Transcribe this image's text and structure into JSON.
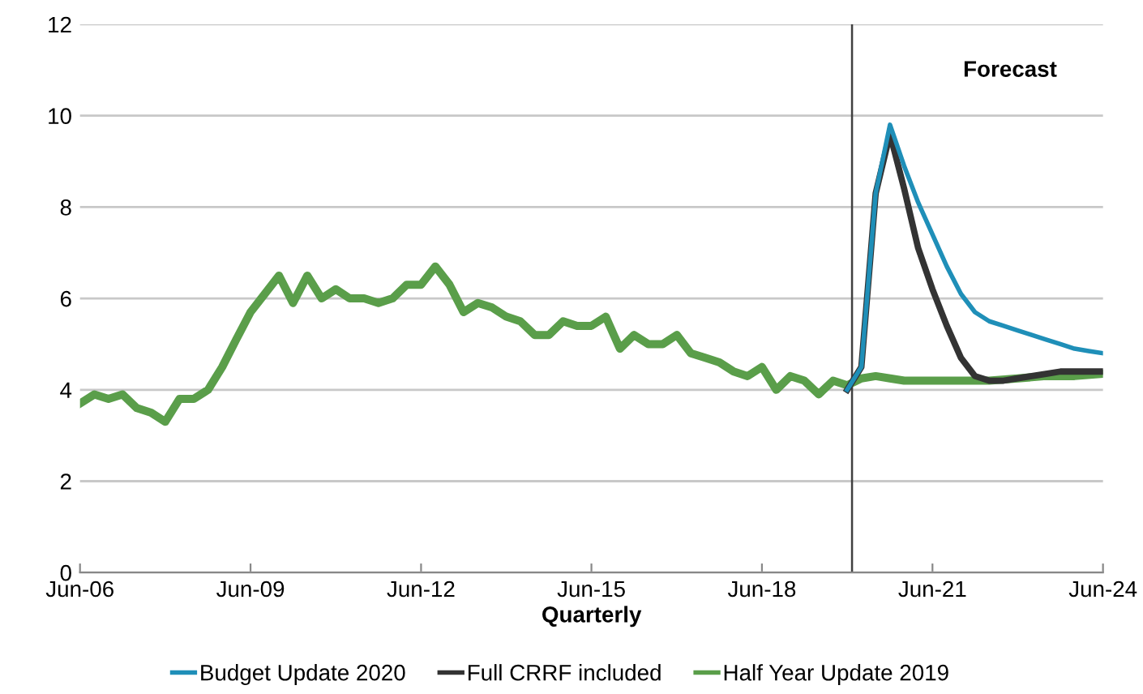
{
  "chart_data": {
    "type": "line",
    "xlabel": "Quarterly",
    "xlim": [
      "2006-06",
      "2024-06"
    ],
    "xticks": [
      {
        "value": "2006-06",
        "label": "Jun-06"
      },
      {
        "value": "2009-06",
        "label": "Jun-09"
      },
      {
        "value": "2012-06",
        "label": "Jun-12"
      },
      {
        "value": "2015-06",
        "label": "Jun-15"
      },
      {
        "value": "2018-06",
        "label": "Jun-18"
      },
      {
        "value": "2021-06",
        "label": "Jun-21"
      },
      {
        "value": "2024-06",
        "label": "Jun-24"
      }
    ],
    "ylim": [
      0,
      12
    ],
    "yticks": [
      0,
      2,
      4,
      6,
      8,
      10,
      12
    ],
    "grid": "y",
    "legend": "bottom",
    "line_style": "solid",
    "marker": "none",
    "ref_lines": [
      {
        "axis": "x",
        "value": "2020-01",
        "color": "#404040"
      }
    ],
    "annotations": [
      "Forecast"
    ],
    "series": [
      {
        "name": "Budget Update 2020",
        "color": "#1f8fb8",
        "x": [
          "2019-12",
          "2020-03",
          "2020-06",
          "2020-09",
          "2020-12",
          "2021-03",
          "2021-06",
          "2021-09",
          "2021-12",
          "2022-03",
          "2022-06",
          "2022-09",
          "2022-12",
          "2023-03",
          "2023-06",
          "2023-09",
          "2023-12",
          "2024-03",
          "2024-06"
        ],
        "values": [
          4.0,
          4.5,
          8.3,
          9.8,
          8.9,
          8.1,
          7.4,
          6.7,
          6.1,
          5.7,
          5.5,
          5.4,
          5.3,
          5.2,
          5.1,
          5.0,
          4.9,
          4.85,
          4.8
        ]
      },
      {
        "name": "Full CRRF included",
        "color": "#333333",
        "x": [
          "2019-12",
          "2020-03",
          "2020-06",
          "2020-09",
          "2020-12",
          "2021-03",
          "2021-06",
          "2021-09",
          "2021-12",
          "2022-03",
          "2022-06",
          "2022-09",
          "2022-12",
          "2023-03",
          "2023-06",
          "2023-09",
          "2023-12",
          "2024-03",
          "2024-06"
        ],
        "values": [
          4.0,
          4.5,
          8.3,
          9.6,
          8.4,
          7.1,
          6.2,
          5.4,
          4.7,
          4.3,
          4.2,
          4.2,
          4.25,
          4.3,
          4.35,
          4.4,
          4.4,
          4.4,
          4.4
        ]
      },
      {
        "name": "Half Year Update 2019",
        "color": "#5a9e4a",
        "x": [
          "2006-06",
          "2006-09",
          "2006-12",
          "2007-03",
          "2007-06",
          "2007-09",
          "2007-12",
          "2008-03",
          "2008-06",
          "2008-09",
          "2008-12",
          "2009-03",
          "2009-06",
          "2009-09",
          "2009-12",
          "2010-03",
          "2010-06",
          "2010-09",
          "2010-12",
          "2011-03",
          "2011-06",
          "2011-09",
          "2011-12",
          "2012-03",
          "2012-06",
          "2012-09",
          "2012-12",
          "2013-03",
          "2013-06",
          "2013-09",
          "2013-12",
          "2014-03",
          "2014-06",
          "2014-09",
          "2014-12",
          "2015-03",
          "2015-06",
          "2015-09",
          "2015-12",
          "2016-03",
          "2016-06",
          "2016-09",
          "2016-12",
          "2017-03",
          "2017-06",
          "2017-09",
          "2017-12",
          "2018-03",
          "2018-06",
          "2018-09",
          "2018-12",
          "2019-03",
          "2019-06",
          "2019-09",
          "2019-12",
          "2020-03",
          "2020-06",
          "2020-09",
          "2020-12",
          "2021-06",
          "2021-12",
          "2022-06",
          "2022-12",
          "2023-06",
          "2023-12",
          "2024-06"
        ],
        "values": [
          3.7,
          3.9,
          3.8,
          3.9,
          3.6,
          3.5,
          3.3,
          3.8,
          3.8,
          4.0,
          4.5,
          5.1,
          5.7,
          6.1,
          6.5,
          5.9,
          6.5,
          6.0,
          6.2,
          6.0,
          6.0,
          5.9,
          6.0,
          6.3,
          6.3,
          6.7,
          6.3,
          5.7,
          5.9,
          5.8,
          5.6,
          5.5,
          5.2,
          5.2,
          5.5,
          5.4,
          5.4,
          5.6,
          4.9,
          5.2,
          5.0,
          5.0,
          5.2,
          4.8,
          4.7,
          4.6,
          4.4,
          4.3,
          4.5,
          4.0,
          4.3,
          4.2,
          3.9,
          4.2,
          4.1,
          4.25,
          4.3,
          4.25,
          4.2,
          4.2,
          4.2,
          4.2,
          4.25,
          4.3,
          4.3,
          4.35
        ]
      }
    ]
  }
}
